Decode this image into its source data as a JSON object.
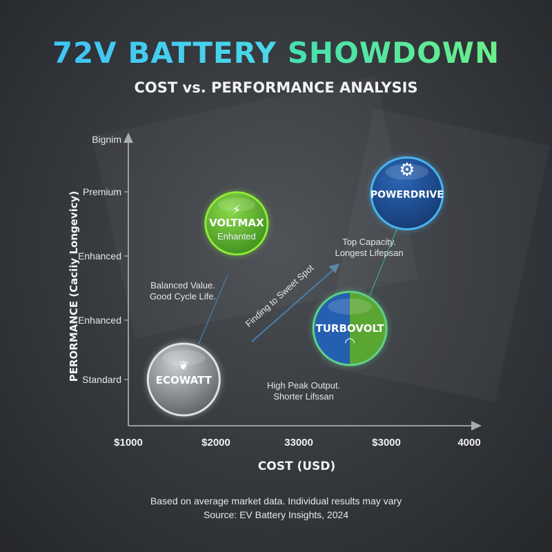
{
  "title": {
    "part1": "72V BATTERY",
    "part2": "SHOWDOWN"
  },
  "subtitle": "COST vs. PERFORMANCE ANALYSIS",
  "chart_data": {
    "type": "scatter",
    "xlabel": "COST (USD)",
    "ylabel": "PERORMANCE (Caciiy Longevicy)",
    "x_tick_labels": [
      "$1000",
      "$2000",
      "33000",
      "$3000",
      "4000"
    ],
    "y_tick_labels": [
      "Standard",
      "Enhanced",
      "Enhanced",
      "Premium",
      "Bignim"
    ],
    "grid": false,
    "points": [
      {
        "name": "ECOWATT",
        "sublabel": "",
        "icon": "leaf-icon",
        "x": 0.65,
        "y": 0.0,
        "color": "#9aa0a6"
      },
      {
        "name": "VOLTMAX",
        "sublabel": "Enhanted",
        "icon": "lightning-icon",
        "x": 1.27,
        "y": 2.6,
        "color": "#5cb82e"
      },
      {
        "name": "POWERDRIVE",
        "sublabel": "",
        "icon": "gear-icon",
        "x": 3.27,
        "y": 3.1,
        "color": "#1f4f95"
      },
      {
        "name": "TURBOVOLT",
        "sublabel": "",
        "icon": "speedometer-icon",
        "x": 2.6,
        "y": 0.85,
        "color": "#3a7fd0"
      }
    ],
    "annotations": [
      {
        "lines": [
          "Balanced Value.",
          "Good Cycle Life."
        ]
      },
      {
        "lines": [
          "Top Capacity.",
          "Longest Lifepsan"
        ]
      },
      {
        "lines": [
          "High Peak Output.",
          "Shorter Lifssan"
        ]
      },
      {
        "lines": [
          "Finding to Sweet Spot"
        ]
      }
    ]
  },
  "footer": {
    "line1": "Based on average market data. Individual results may vary",
    "line2": "Source: EV Battery Insights, 2024"
  }
}
